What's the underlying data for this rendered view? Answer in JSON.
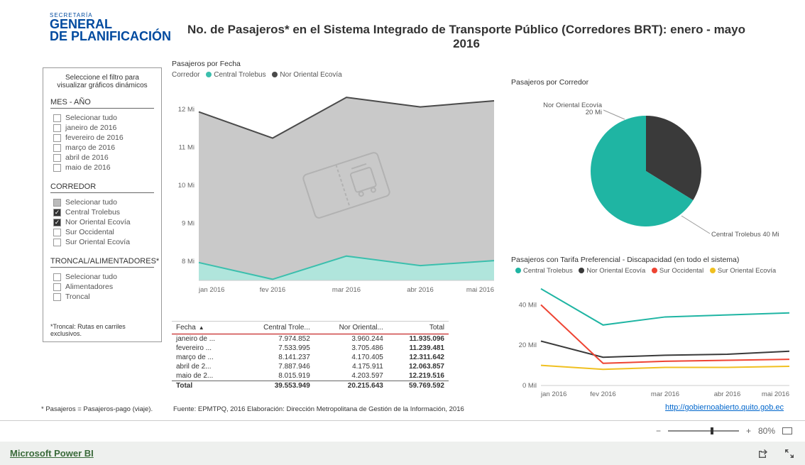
{
  "logo": {
    "small": "SECRETARÍA",
    "line1": "GENERAL",
    "line2": "DE PLANIFICACIÓN"
  },
  "title": "No. de Pasajeros* en el Sistema Integrado de Transporte Público (Corredores BRT): enero - mayo 2016",
  "sidebar": {
    "hint": "Seleccione el filtro para visualizar gráficos dinámicos",
    "groups": [
      {
        "title": "MES - AÑO",
        "items": [
          {
            "label": "Selecionar tudo",
            "checked": false
          },
          {
            "label": "janeiro de 2016",
            "checked": false
          },
          {
            "label": "fevereiro de 2016",
            "checked": false
          },
          {
            "label": "março de 2016",
            "checked": false
          },
          {
            "label": "abril de 2016",
            "checked": false
          },
          {
            "label": "maio de 2016",
            "checked": false
          }
        ]
      },
      {
        "title": "CORREDOR",
        "items": [
          {
            "label": "Selecionar tudo",
            "checked": false,
            "gray": true
          },
          {
            "label": "Central Trolebus",
            "checked": true
          },
          {
            "label": "Nor Oriental Ecovía",
            "checked": true
          },
          {
            "label": "Sur Occidental",
            "checked": false
          },
          {
            "label": "Sur Oriental Ecovía",
            "checked": false
          }
        ]
      },
      {
        "title": "TRONCAL/ALIMENTADORES*",
        "items": [
          {
            "label": "Selecionar tudo",
            "checked": false
          },
          {
            "label": "Alimentadores",
            "checked": false
          },
          {
            "label": "Troncal",
            "checked": false
          }
        ]
      }
    ],
    "note": "*Troncal: Rutas en carriles exclusivos."
  },
  "line_chart": {
    "title": "Pasajeros por Fecha",
    "legend_label": "Corredor",
    "series": [
      {
        "name": "Central Trolebus",
        "color": "#3bbfad"
      },
      {
        "name": "Nor Oriental Ecovía",
        "color": "#4a4a4a"
      }
    ],
    "x_labels": [
      "jan 2016",
      "fev 2016",
      "mar 2016",
      "abr 2016",
      "mai 2016"
    ],
    "y_ticks": [
      "8 Mi",
      "9 Mi",
      "10 Mi",
      "11 Mi",
      "12 Mi"
    ],
    "y_min": 7.5,
    "y_max": 12.5,
    "area_color": "#bfbfbf",
    "band_color": "#b0e5dc",
    "top_values": [
      11.93,
      11.24,
      12.31,
      12.06,
      12.22
    ],
    "mid_values": [
      7.97,
      7.53,
      8.14,
      7.89,
      8.02
    ]
  },
  "table": {
    "columns": [
      "Fecha",
      "Central Trole...",
      "Nor Oriental...",
      "Total"
    ],
    "rows": [
      [
        "janeiro de ...",
        "7.974.852",
        "3.960.244",
        "11.935.096"
      ],
      [
        "fevereiro ...",
        "7.533.995",
        "3.705.486",
        "11.239.481"
      ],
      [
        "março de ...",
        "8.141.237",
        "4.170.405",
        "12.311.642"
      ],
      [
        "abril de 2...",
        "7.887.946",
        "4.175.911",
        "12.063.857"
      ],
      [
        "maio de 2...",
        "8.015.919",
        "4.203.597",
        "12.219.516"
      ]
    ],
    "total": [
      "Total",
      "39.553.949",
      "20.215.643",
      "59.769.592"
    ]
  },
  "pie": {
    "title": "Pasajeros por Corredor",
    "slices": [
      {
        "label": "Nor Oriental Ecovía",
        "value_label": "20 Mi",
        "color": "#3a3a3a",
        "fraction": 0.338
      },
      {
        "label": "Central Trolebus 40 Mi",
        "value_label": "",
        "color": "#1fb5a3",
        "fraction": 0.662
      }
    ]
  },
  "small_chart": {
    "title": "Pasajeros con Tarifa Preferencial - Discapacidad (en todo el sistema)",
    "series": [
      {
        "name": "Central Trolebus",
        "color": "#1fb5a3",
        "values": [
          48,
          30,
          34,
          35,
          36
        ]
      },
      {
        "name": "Nor Oriental Ecovía",
        "color": "#3a3a3a",
        "values": [
          22,
          14,
          15,
          15.5,
          17
        ]
      },
      {
        "name": "Sur Occidental",
        "color": "#ee4433",
        "values": [
          40,
          11,
          12,
          12.5,
          13
        ]
      },
      {
        "name": "Sur Oriental Ecovía",
        "color": "#f0c020",
        "values": [
          10,
          8,
          9,
          9,
          9.5
        ]
      }
    ],
    "x_labels": [
      "jan 2016",
      "fev 2016",
      "mar 2016",
      "abr 2016",
      "mai 2016"
    ],
    "y_ticks": [
      "0 Mil",
      "20 Mil",
      "40 Mil"
    ],
    "y_min": 0,
    "y_max": 50
  },
  "footnote1": "* Pasajeros = Pasajeros-pago (viaje).",
  "footnote2": "Fuente: EPMTPQ, 2016      Elaboración: Dirección Metropolitana de Gestión de la Información, 2016",
  "link": "http://gobiernoabierto.quito.gob.ec",
  "zoom": {
    "minus": "−",
    "plus": "+",
    "value": "80%"
  },
  "footer": {
    "brand": "Microsoft Power BI"
  }
}
